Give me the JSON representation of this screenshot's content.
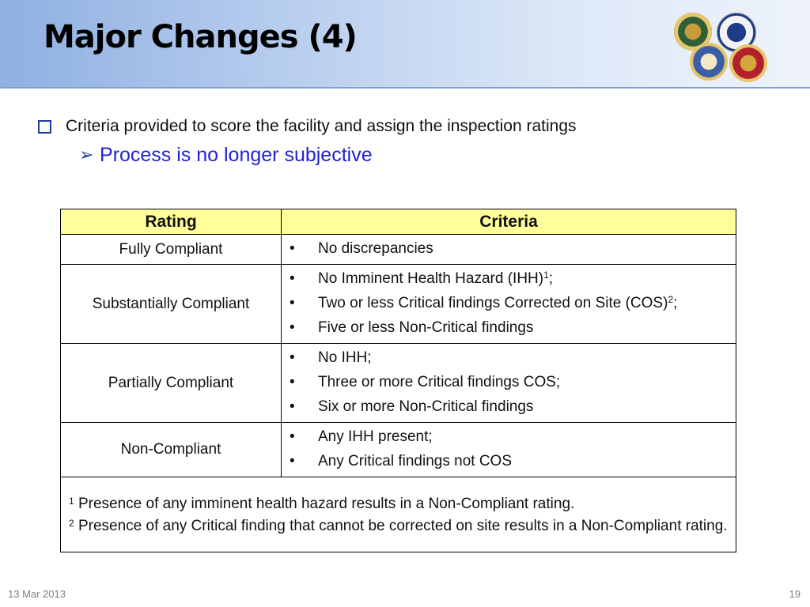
{
  "slide": {
    "title": "Major Changes (4)",
    "bullet": "Criteria provided to score the facility and assign the inspection ratings",
    "sub_bullet": "Process is no longer subjective",
    "seals": [
      "army-seal-icon",
      "air-force-seal-icon",
      "navy-seal-icon",
      "marine-corps-seal-icon"
    ]
  },
  "table": {
    "headers": {
      "rating": "Rating",
      "criteria": "Criteria"
    },
    "header_color": "#ffff99",
    "rows": [
      {
        "rating": "Fully Compliant",
        "criteria": [
          "No discrepancies"
        ]
      },
      {
        "rating": "Substantially Compliant",
        "criteria": [
          "No Imminent Health Hazard (IHH)",
          "Two or less Critical findings Corrected on Site (COS)",
          "Five or less Non-Critical findings"
        ]
      },
      {
        "rating": "Partially Compliant",
        "criteria": [
          "No IHH;",
          "Three or more Critical findings COS;",
          "Six or more Non-Critical findings"
        ]
      },
      {
        "rating": "Non-Compliant",
        "criteria": [
          "Any IHH present;",
          "Any Critical findings not COS"
        ]
      }
    ],
    "footnotes": [
      {
        "mark": "1",
        "text": "Presence of any imminent health hazard results in a Non-Compliant rating."
      },
      {
        "mark": "2",
        "text": "Presence of any Critical finding that cannot be corrected on site results in a Non-Compliant rating."
      }
    ]
  },
  "footer": {
    "date": "13 Mar 2013",
    "page": "19"
  },
  "colors": {
    "sub_bullet": "#2323d1",
    "bullet_icon": "#1f3b9e"
  }
}
